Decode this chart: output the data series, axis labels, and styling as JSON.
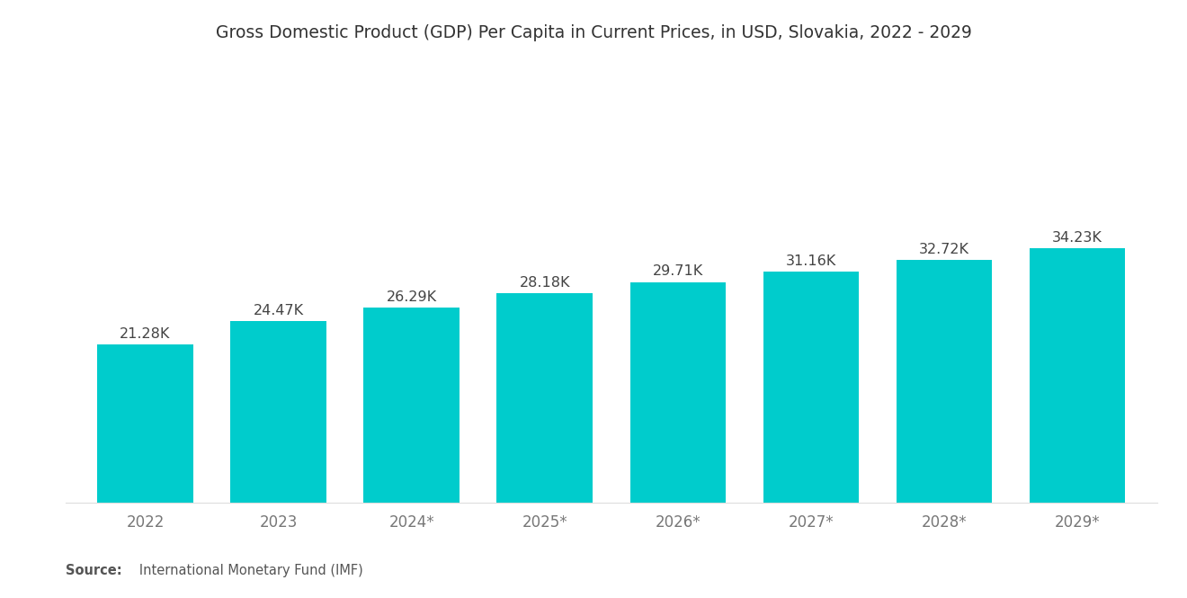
{
  "title": "Gross Domestic Product (GDP) Per Capita in Current Prices, in USD, Slovakia, 2022 - 2029",
  "categories": [
    "2022",
    "2023",
    "2024*",
    "2025*",
    "2026*",
    "2027*",
    "2028*",
    "2029*"
  ],
  "values": [
    21.28,
    24.47,
    26.29,
    28.18,
    29.71,
    31.16,
    32.72,
    34.23
  ],
  "labels": [
    "21.28K",
    "24.47K",
    "26.29K",
    "28.18K",
    "29.71K",
    "31.16K",
    "32.72K",
    "34.23K"
  ],
  "bar_color": "#00CCCC",
  "background_color": "#ffffff",
  "title_fontsize": 13.5,
  "label_fontsize": 11.5,
  "tick_fontsize": 12,
  "source_bold": "Source:",
  "source_text": "   International Monetary Fund (IMF)",
  "source_fontsize": 10.5,
  "ylim": [
    0,
    50
  ],
  "bar_width": 0.72
}
